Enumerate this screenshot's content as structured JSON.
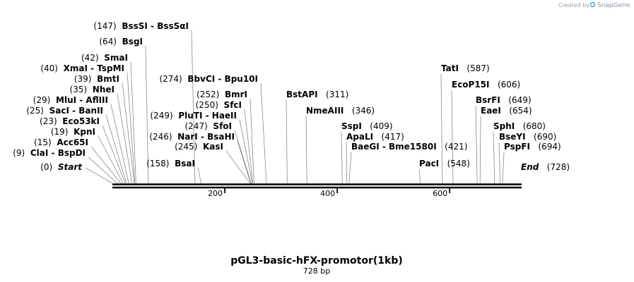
{
  "credit": {
    "prefix": "Created by",
    "brand": "SnapGene"
  },
  "map": {
    "title": "pGL3-basic-hFX-promotor(1kb)",
    "length_label": "728 bp",
    "axis": {
      "start": 0,
      "end": 728,
      "ticks": [
        200,
        400,
        600
      ]
    },
    "markers": [
      {
        "name": "Start",
        "pos": 0,
        "italic": true,
        "side": "left"
      },
      {
        "name": "End",
        "pos": 728,
        "italic": true,
        "side": "right"
      }
    ],
    "sites": [
      {
        "pos": 9,
        "text": "ClaI  - BspDI",
        "side": "left"
      },
      {
        "pos": 15,
        "text": "Acc65I",
        "side": "left"
      },
      {
        "pos": 19,
        "text": "KpnI",
        "side": "left"
      },
      {
        "pos": 23,
        "text": "Eco53kI",
        "side": "left"
      },
      {
        "pos": 25,
        "text": "SacI  - BanII",
        "side": "left"
      },
      {
        "pos": 29,
        "text": "MluI  - AflIII",
        "side": "left"
      },
      {
        "pos": 35,
        "text": "NheI",
        "side": "left"
      },
      {
        "pos": 39,
        "text": "BmtI",
        "side": "left"
      },
      {
        "pos": 40,
        "text": "XmaI  - TspMI",
        "side": "left"
      },
      {
        "pos": 42,
        "text": "SmaI",
        "side": "left"
      },
      {
        "pos": 64,
        "text": "BsgI",
        "side": "left"
      },
      {
        "pos": 147,
        "text": "BssSI  - BssSαI",
        "side": "left"
      },
      {
        "pos": 158,
        "text": "BsaI",
        "side": "left"
      },
      {
        "pos": 245,
        "text": "KasI",
        "side": "left"
      },
      {
        "pos": 246,
        "text": "NarI  - BsaHI",
        "side": "left"
      },
      {
        "pos": 247,
        "text": "SfoI",
        "side": "left"
      },
      {
        "pos": 249,
        "text": "PluTI  - HaeII",
        "side": "left"
      },
      {
        "pos": 250,
        "text": "SfcI",
        "side": "left"
      },
      {
        "pos": 252,
        "text": "BmrI",
        "side": "left"
      },
      {
        "pos": 274,
        "text": "BbvCI  - Bpu10I",
        "side": "left"
      },
      {
        "pos": 311,
        "text": "BstAPI",
        "side": "right"
      },
      {
        "pos": 346,
        "text": "NmeAIII",
        "side": "right"
      },
      {
        "pos": 409,
        "text": "SspI",
        "side": "right"
      },
      {
        "pos": 417,
        "text": "ApaLI",
        "side": "right"
      },
      {
        "pos": 421,
        "text": "BaeGI  - Bme1580I",
        "side": "right"
      },
      {
        "pos": 548,
        "text": "PacI",
        "side": "right"
      },
      {
        "pos": 587,
        "text": "TatI",
        "side": "right"
      },
      {
        "pos": 606,
        "text": "EcoP15I",
        "side": "right"
      },
      {
        "pos": 649,
        "text": "BsrFI",
        "side": "right"
      },
      {
        "pos": 654,
        "text": "EaeI",
        "side": "right"
      },
      {
        "pos": 680,
        "text": "SphI",
        "side": "right"
      },
      {
        "pos": 690,
        "text": "BseYI",
        "side": "right"
      },
      {
        "pos": 694,
        "text": "PspFI",
        "side": "right"
      }
    ]
  }
}
